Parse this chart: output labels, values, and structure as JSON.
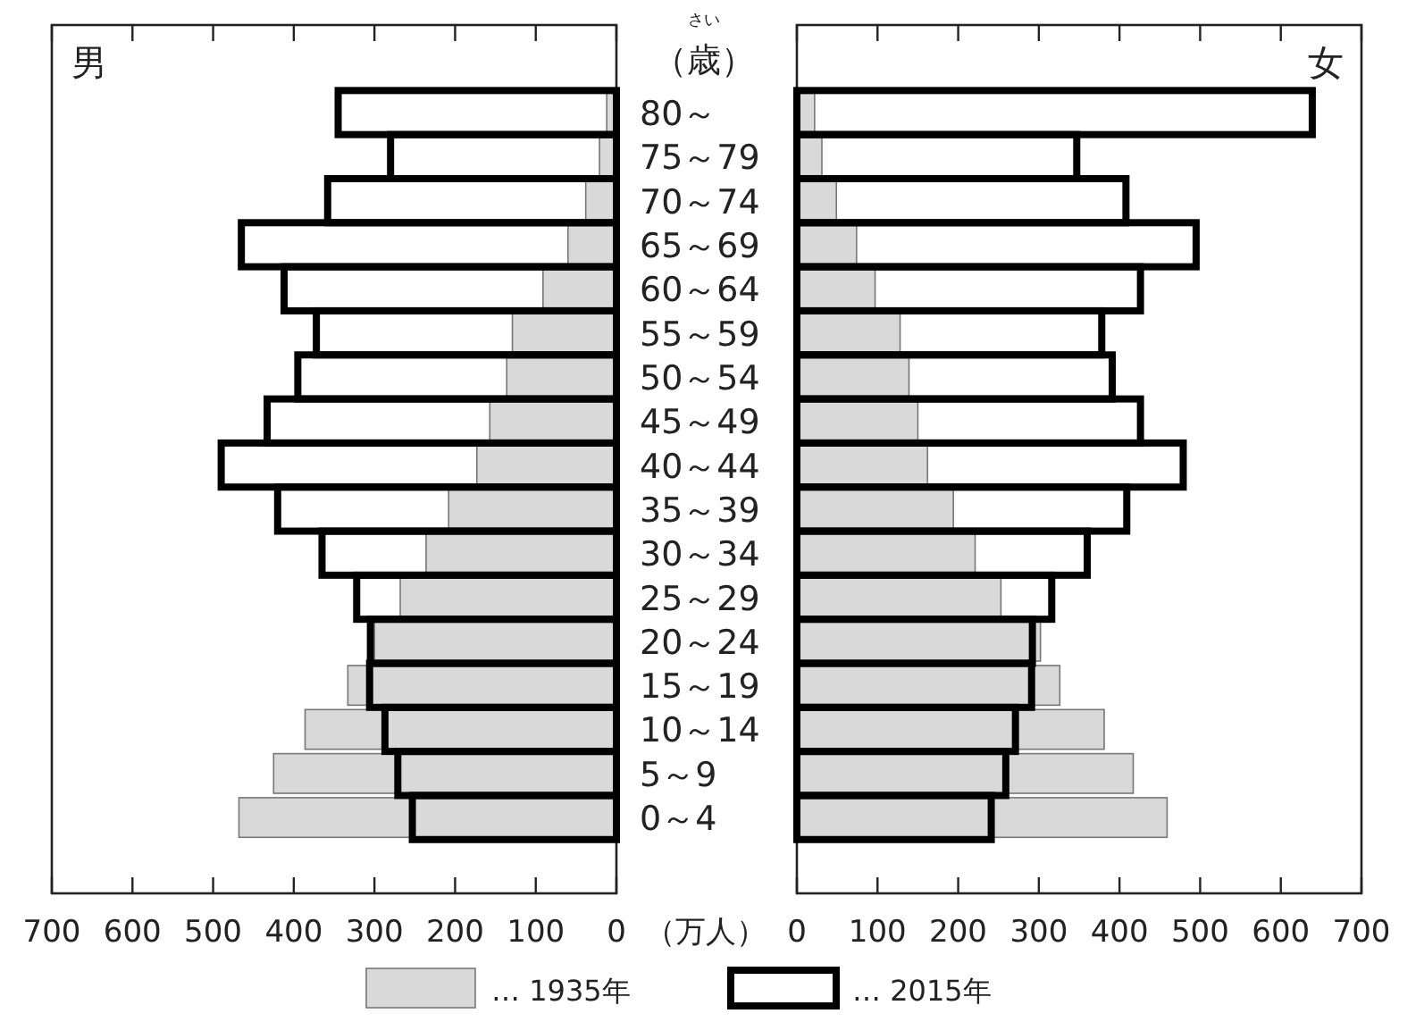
{
  "chart_data": [
    {
      "type": "bar",
      "orientation": "horizontal",
      "title": "男",
      "ylabel": "（歳）",
      "annotations": [
        "さい"
      ],
      "xlabel": "（万人）",
      "categories": [
        "80～",
        "75～79",
        "70～74",
        "65～69",
        "60～64",
        "55～59",
        "50～54",
        "45～49",
        "40～44",
        "35～39",
        "30～34",
        "25～29",
        "20～24",
        "15～19",
        "10～14",
        "5～9",
        "0～4"
      ],
      "series": [
        {
          "name": "… 1935年",
          "color": "#d9d9d9",
          "values": [
            12,
            21,
            38,
            60,
            91,
            129,
            136,
            157,
            173,
            208,
            236,
            268,
            300,
            333,
            386,
            425,
            468
          ]
        },
        {
          "name": "… 2015年",
          "color": "#000000",
          "values": [
            345,
            280,
            358,
            465,
            412,
            372,
            395,
            433,
            490,
            420,
            365,
            322,
            305,
            306,
            287,
            271,
            253
          ]
        }
      ],
      "xlim": [
        700,
        0
      ],
      "xticks": [
        700,
        600,
        500,
        400,
        300,
        200,
        100,
        0
      ],
      "legend": "bottom"
    },
    {
      "type": "bar",
      "orientation": "horizontal",
      "title": "女",
      "categories": [
        null,
        null,
        null,
        null,
        null,
        null,
        null,
        null,
        null,
        null,
        null,
        null,
        null,
        null,
        null,
        null,
        null
      ],
      "series": [
        {
          "color": "#d9d9d9",
          "values": [
            22,
            31,
            49,
            74,
            97,
            128,
            139,
            150,
            162,
            194,
            221,
            253,
            302,
            326,
            381,
            417,
            459
          ]
        },
        {
          "color": "#000000",
          "values": [
            639,
            347,
            408,
            495,
            426,
            378,
            391,
            426,
            479,
            409,
            360,
            316,
            292,
            291,
            271,
            259,
            241
          ]
        }
      ],
      "xlim": [
        0,
        700
      ],
      "xticks": [
        0,
        100,
        200,
        300,
        400,
        500,
        600,
        700
      ],
      "tick_labels": "x"
    }
  ]
}
